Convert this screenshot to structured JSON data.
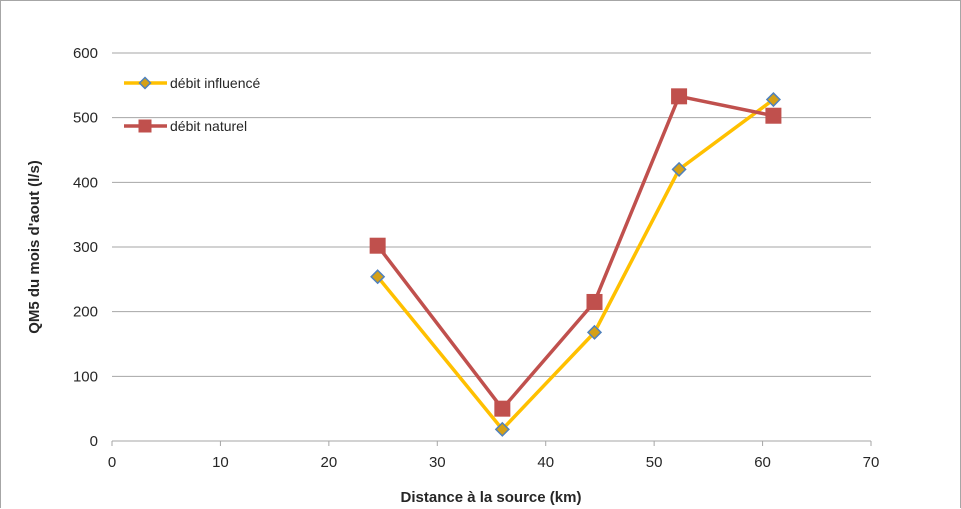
{
  "chart_data": {
    "type": "line",
    "title": "",
    "xlabel": "Distance à la source (km)",
    "ylabel": "QM5 du mois d'aout (l/s)",
    "xlim": [
      0,
      70
    ],
    "ylim": [
      0,
      600
    ],
    "xticks": [
      0,
      10,
      20,
      30,
      40,
      50,
      60,
      70
    ],
    "yticks": [
      0,
      100,
      200,
      300,
      400,
      500,
      600
    ],
    "grid": "horizontal",
    "legend_position": "top-left",
    "series": [
      {
        "name": "débit influencé",
        "color": "#FFC000",
        "marker": "diamond",
        "marker_fill": "#D4A017",
        "marker_edge": "#4F81BD",
        "x": [
          24.5,
          36,
          44.5,
          52.3,
          61
        ],
        "y": [
          254,
          18,
          168,
          420,
          528
        ]
      },
      {
        "name": "débit naturel",
        "color": "#C0504D",
        "marker": "square",
        "marker_fill": "#C0504D",
        "marker_edge": "#C0504D",
        "x": [
          24.5,
          36,
          44.5,
          52.3,
          61
        ],
        "y": [
          302,
          50,
          215,
          533,
          503
        ]
      }
    ]
  }
}
